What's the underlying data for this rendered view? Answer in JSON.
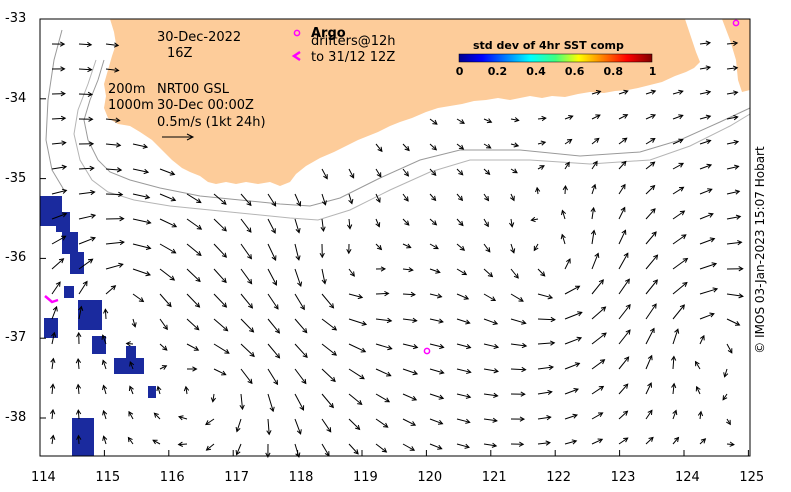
{
  "map": {
    "date": "30-Dec-2022",
    "hour": "16Z",
    "depth_200": "200m",
    "depth_1000": "1000m",
    "product": "NRT00 GSL",
    "valid_time": "30-Dec 00:00Z",
    "scale_label": "0.5m/s (1kt 24h)",
    "argo_label": "Argo",
    "drifters_label": "drifters@12h",
    "drifters_to": "to 31/12 12Z",
    "credit": "© IMOS 03-Jan-2023 15:07 Hobart",
    "land_color": "#fdcc9a",
    "argo_color": "#ff00ff",
    "colorbar": {
      "title": "std dev of 4hr SST comp",
      "ticks": [
        "0",
        "0.2",
        "0.4",
        "0.6",
        "0.8",
        "1"
      ]
    },
    "x_ticks": [
      "114",
      "115",
      "116",
      "117",
      "118",
      "119",
      "120",
      "121",
      "122",
      "123",
      "124",
      "125"
    ],
    "y_ticks": [
      "-33",
      "-34",
      "-35",
      "-36",
      "-37",
      "-38"
    ]
  }
}
